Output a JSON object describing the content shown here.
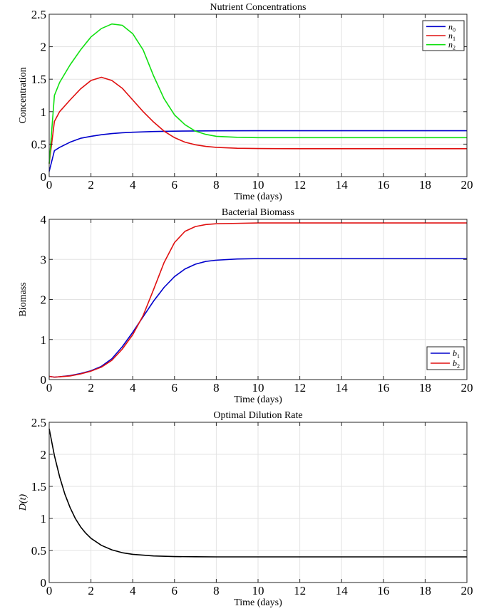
{
  "chart_data": [
    {
      "type": "line",
      "title": "Nutrient Concentrations",
      "xlabel": "Time (days)",
      "ylabel": "Concentration",
      "xlim": [
        0,
        20
      ],
      "ylim": [
        0,
        2.5
      ],
      "xticks": [
        0,
        2,
        4,
        6,
        8,
        10,
        12,
        14,
        16,
        18,
        20
      ],
      "yticks": [
        0,
        0.5,
        1,
        1.5,
        2,
        2.5
      ],
      "xtick_labels": [
        "0",
        "2",
        "4",
        "6",
        "8",
        "10",
        "12",
        "14",
        "16",
        "18",
        "20"
      ],
      "ytick_labels": [
        "0",
        "0.5",
        "1",
        "1.5",
        "2",
        "2.5"
      ],
      "grid": true,
      "legend_position": "top-right",
      "series": [
        {
          "name": "n0",
          "base": "n",
          "sub": "0",
          "color": "#0000cc",
          "x": [
            0,
            0.25,
            0.5,
            1,
            1.5,
            2,
            2.5,
            3,
            3.5,
            4,
            5,
            6,
            7,
            8,
            10,
            12,
            14,
            16,
            18,
            20
          ],
          "values": [
            0.08,
            0.4,
            0.45,
            0.53,
            0.59,
            0.62,
            0.645,
            0.663,
            0.675,
            0.683,
            0.694,
            0.7,
            0.703,
            0.705,
            0.706,
            0.706,
            0.706,
            0.706,
            0.706,
            0.706
          ]
        },
        {
          "name": "n1",
          "base": "n",
          "sub": "1",
          "color": "#e01010",
          "x": [
            0,
            0.25,
            0.5,
            1,
            1.5,
            2,
            2.5,
            3,
            3.5,
            4,
            4.5,
            5,
            5.5,
            6,
            6.5,
            7,
            7.5,
            8,
            9,
            10,
            12,
            14,
            16,
            18,
            20
          ],
          "values": [
            0.2,
            0.85,
            1.0,
            1.18,
            1.35,
            1.48,
            1.53,
            1.48,
            1.36,
            1.18,
            1.0,
            0.84,
            0.7,
            0.6,
            0.53,
            0.49,
            0.465,
            0.45,
            0.437,
            0.432,
            0.43,
            0.43,
            0.43,
            0.43,
            0.43
          ]
        },
        {
          "name": "n2",
          "base": "n",
          "sub": "2",
          "color": "#10e010",
          "x": [
            0,
            0.25,
            0.5,
            1,
            1.5,
            2,
            2.5,
            3,
            3.5,
            4,
            4.5,
            5,
            5.5,
            6,
            6.5,
            7,
            7.5,
            8,
            9,
            10,
            12,
            14,
            16,
            18,
            20
          ],
          "values": [
            0.2,
            1.25,
            1.45,
            1.72,
            1.95,
            2.15,
            2.28,
            2.35,
            2.33,
            2.2,
            1.95,
            1.55,
            1.2,
            0.95,
            0.8,
            0.7,
            0.65,
            0.62,
            0.605,
            0.6,
            0.6,
            0.6,
            0.6,
            0.6,
            0.6
          ]
        }
      ]
    },
    {
      "type": "line",
      "title": "Bacterial Biomass",
      "xlabel": "Time (days)",
      "ylabel": "Biomass",
      "xlim": [
        0,
        20
      ],
      "ylim": [
        0,
        4
      ],
      "xticks": [
        0,
        2,
        4,
        6,
        8,
        10,
        12,
        14,
        16,
        18,
        20
      ],
      "yticks": [
        0,
        1,
        2,
        3,
        4
      ],
      "xtick_labels": [
        "0",
        "2",
        "4",
        "6",
        "8",
        "10",
        "12",
        "14",
        "16",
        "18",
        "20"
      ],
      "ytick_labels": [
        "0",
        "1",
        "2",
        "3",
        "4"
      ],
      "grid": true,
      "legend_position": "bottom-right",
      "series": [
        {
          "name": "b1",
          "base": "b",
          "sub": "1",
          "color": "#0000cc",
          "x": [
            0,
            0.25,
            0.5,
            1,
            1.5,
            2,
            2.5,
            3,
            3.5,
            4,
            4.5,
            5,
            5.5,
            6,
            6.5,
            7,
            7.5,
            8,
            9,
            10,
            12,
            14,
            16,
            18,
            20
          ],
          "values": [
            0.08,
            0.06,
            0.07,
            0.1,
            0.15,
            0.22,
            0.33,
            0.52,
            0.82,
            1.18,
            1.57,
            1.96,
            2.3,
            2.57,
            2.76,
            2.88,
            2.95,
            2.98,
            3.01,
            3.02,
            3.02,
            3.02,
            3.02,
            3.02,
            3.02
          ]
        },
        {
          "name": "b2",
          "base": "b",
          "sub": "2",
          "color": "#e01010",
          "x": [
            0,
            0.25,
            0.5,
            1,
            1.5,
            2,
            2.5,
            3,
            3.5,
            4,
            4.5,
            5,
            5.5,
            6,
            6.5,
            7,
            7.5,
            8,
            9,
            10,
            12,
            14,
            16,
            18,
            20
          ],
          "values": [
            0.08,
            0.06,
            0.07,
            0.09,
            0.14,
            0.21,
            0.31,
            0.48,
            0.76,
            1.12,
            1.6,
            2.25,
            2.92,
            3.42,
            3.7,
            3.82,
            3.87,
            3.89,
            3.9,
            3.91,
            3.91,
            3.91,
            3.91,
            3.91,
            3.91
          ]
        }
      ]
    },
    {
      "type": "line",
      "title": "Optimal Dilution Rate",
      "xlabel": "Time (days)",
      "ylabel": "D(t)",
      "xlim": [
        0,
        20
      ],
      "ylim": [
        0,
        2.5
      ],
      "xticks": [
        0,
        2,
        4,
        6,
        8,
        10,
        12,
        14,
        16,
        18,
        20
      ],
      "yticks": [
        0,
        0.5,
        1,
        1.5,
        2,
        2.5
      ],
      "xtick_labels": [
        "0",
        "2",
        "4",
        "6",
        "8",
        "10",
        "12",
        "14",
        "16",
        "18",
        "20"
      ],
      "ytick_labels": [
        "0",
        "0.5",
        "1",
        "1.5",
        "2",
        "2.5"
      ],
      "grid": true,
      "legend_position": "none",
      "series": [
        {
          "name": "D(t)",
          "color": "#000000",
          "x": [
            0,
            0.25,
            0.5,
            0.75,
            1,
            1.25,
            1.5,
            1.75,
            2,
            2.5,
            3,
            3.5,
            4,
            5,
            6,
            7,
            8,
            10,
            12,
            14,
            16,
            18,
            20
          ],
          "values": [
            2.4,
            1.98,
            1.65,
            1.38,
            1.17,
            1.0,
            0.87,
            0.77,
            0.69,
            0.58,
            0.51,
            0.465,
            0.44,
            0.415,
            0.405,
            0.402,
            0.4,
            0.4,
            0.4,
            0.4,
            0.4,
            0.4,
            0.4
          ]
        }
      ]
    }
  ]
}
